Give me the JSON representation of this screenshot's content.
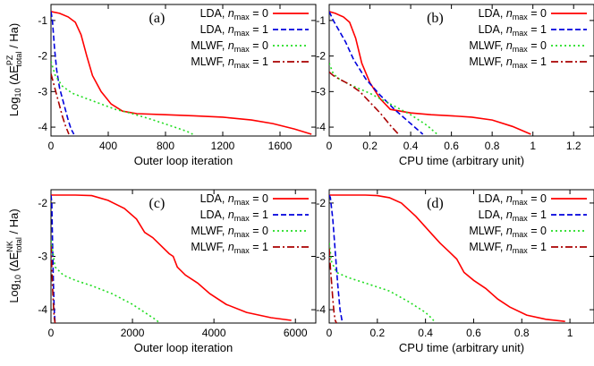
{
  "colors": {
    "lda0": "#ff0000",
    "lda1": "#0000dd",
    "mlwf0": "#22dd22",
    "mlwf1": "#aa0000"
  },
  "legend": [
    {
      "base": "LDA",
      "n": "n",
      "sub": "max",
      "eq": " = 0",
      "color_key": "lda0",
      "dash": "none"
    },
    {
      "base": "LDA",
      "n": "n",
      "sub": "max",
      "eq": " = 1",
      "color_key": "lda1",
      "dash": "6,3"
    },
    {
      "base": "MLWF",
      "n": "n",
      "sub": "max",
      "eq": " = 0",
      "color_key": "mlwf0",
      "dash": "2,3"
    },
    {
      "base": "MLWF",
      "n": "n",
      "sub": "max",
      "eq": " = 1",
      "color_key": "mlwf1",
      "dash": "8,3,2,3"
    }
  ],
  "y_labels": {
    "top": {
      "prefix": "Log",
      "sub10": "10",
      "paren": " (ΔE",
      "sup": "PZ",
      "sub": "total",
      "tail": " / Ha)"
    },
    "bottom": {
      "prefix": "Log",
      "sub10": "10",
      "paren": " (ΔE",
      "sup": "NK",
      "sub": "total",
      "tail": " / Ha)"
    }
  },
  "chart_data": [
    {
      "panel": "(a)",
      "type": "line",
      "xlabel": "Outer loop iteration",
      "xlim": [
        0,
        1850
      ],
      "ylim": [
        -4.25,
        -0.55
      ],
      "xticks": [
        0,
        400,
        800,
        1200,
        1600
      ],
      "yticks": [
        -1,
        -2,
        -3,
        -4
      ],
      "series": [
        {
          "name": "LDA, n_max = 0",
          "color_key": "lda0",
          "x": [
            0,
            60,
            120,
            170,
            210,
            250,
            290,
            350,
            420,
            500,
            600,
            800,
            1000,
            1200,
            1400,
            1550,
            1700,
            1820
          ],
          "y": [
            -0.75,
            -0.8,
            -0.9,
            -1.05,
            -1.4,
            -2.0,
            -2.55,
            -3.0,
            -3.35,
            -3.55,
            -3.62,
            -3.65,
            -3.68,
            -3.72,
            -3.8,
            -3.9,
            -4.05,
            -4.2
          ]
        },
        {
          "name": "LDA, n_max = 1",
          "color_key": "lda1",
          "x": [
            0,
            10,
            25,
            40,
            60,
            80,
            100,
            120,
            140,
            160
          ],
          "y": [
            -0.75,
            -1.0,
            -1.8,
            -2.4,
            -2.9,
            -3.2,
            -3.5,
            -3.8,
            -4.05,
            -4.2
          ]
        },
        {
          "name": "MLWF, n_max = 0",
          "color_key": "mlwf0",
          "x": [
            0,
            30,
            80,
            150,
            250,
            350,
            450,
            500,
            550,
            700,
            850,
            950,
            990
          ],
          "y": [
            -2.15,
            -2.55,
            -2.85,
            -3.05,
            -3.2,
            -3.35,
            -3.5,
            -3.55,
            -3.6,
            -3.78,
            -3.98,
            -4.12,
            -4.2
          ]
        },
        {
          "name": "MLWF, n_max = 1",
          "color_key": "mlwf1",
          "x": [
            0,
            20,
            40,
            60,
            80,
            100,
            115,
            125
          ],
          "y": [
            -2.5,
            -2.8,
            -3.1,
            -3.4,
            -3.7,
            -3.95,
            -4.1,
            -4.2
          ]
        }
      ]
    },
    {
      "panel": "(b)",
      "type": "line",
      "xlabel": "CPU time (arbitrary unit)",
      "xlim": [
        0,
        1.3
      ],
      "ylim": [
        -4.25,
        -0.55
      ],
      "xticks": [
        0,
        0.2,
        0.4,
        0.6,
        0.8,
        1,
        1.2
      ],
      "yticks": [
        -1,
        -2,
        -3,
        -4
      ],
      "series": [
        {
          "name": "LDA, n_max = 0",
          "color_key": "lda0",
          "x": [
            0,
            0.03,
            0.07,
            0.1,
            0.13,
            0.16,
            0.2,
            0.25,
            0.3,
            0.4,
            0.5,
            0.6,
            0.7,
            0.8,
            0.9,
            0.99
          ],
          "y": [
            -0.75,
            -0.8,
            -0.9,
            -1.05,
            -1.5,
            -2.2,
            -2.75,
            -3.2,
            -3.5,
            -3.6,
            -3.65,
            -3.68,
            -3.72,
            -3.8,
            -3.98,
            -4.2
          ]
        },
        {
          "name": "LDA, n_max = 1",
          "color_key": "lda1",
          "x": [
            0,
            0.02,
            0.05,
            0.08,
            0.12,
            0.18,
            0.25,
            0.32,
            0.38,
            0.43,
            0.46
          ],
          "y": [
            -0.75,
            -1.0,
            -1.3,
            -1.6,
            -2.1,
            -2.65,
            -3.1,
            -3.5,
            -3.8,
            -4.05,
            -4.2
          ]
        },
        {
          "name": "MLWF, n_max = 0",
          "color_key": "mlwf0",
          "x": [
            0,
            0.02,
            0.05,
            0.1,
            0.2,
            0.3,
            0.4,
            0.48,
            0.53
          ],
          "y": [
            -2.2,
            -2.5,
            -2.65,
            -2.8,
            -3.05,
            -3.35,
            -3.65,
            -3.95,
            -4.2
          ]
        },
        {
          "name": "MLWF, n_max = 1",
          "color_key": "mlwf1",
          "x": [
            0,
            0.02,
            0.05,
            0.1,
            0.15,
            0.2,
            0.25,
            0.3,
            0.34
          ],
          "y": [
            -2.45,
            -2.55,
            -2.65,
            -2.8,
            -3.0,
            -3.3,
            -3.6,
            -3.95,
            -4.2
          ]
        }
      ]
    },
    {
      "panel": "(c)",
      "type": "line",
      "xlabel": "Outer loop iteration",
      "xlim": [
        0,
        6500
      ],
      "ylim": [
        -4.25,
        -1.75
      ],
      "xticks": [
        0,
        2000,
        4000,
        6000
      ],
      "yticks": [
        -2,
        -3,
        -4
      ],
      "series": [
        {
          "name": "LDA, n_max = 0",
          "color_key": "lda0",
          "x": [
            0,
            200,
            600,
            1000,
            1400,
            1800,
            2100,
            2300,
            2500,
            2700,
            2900,
            3000,
            3100,
            3300,
            3600,
            3900,
            4300,
            4800,
            5400,
            5900
          ],
          "y": [
            -1.85,
            -1.85,
            -1.85,
            -1.86,
            -1.95,
            -2.1,
            -2.3,
            -2.55,
            -2.65,
            -2.8,
            -2.95,
            -3.0,
            -3.2,
            -3.35,
            -3.5,
            -3.7,
            -3.9,
            -4.05,
            -4.15,
            -4.2
          ]
        },
        {
          "name": "LDA, n_max = 1",
          "color_key": "lda1",
          "x": [
            0,
            20,
            40,
            60,
            80,
            100
          ],
          "y": [
            -1.85,
            -2.0,
            -2.8,
            -3.5,
            -4.0,
            -4.25
          ]
        },
        {
          "name": "MLWF, n_max = 0",
          "color_key": "mlwf0",
          "x": [
            0,
            100,
            300,
            600,
            1000,
            1500,
            2000,
            2400,
            2600,
            2650
          ],
          "y": [
            -2.7,
            -3.2,
            -3.35,
            -3.45,
            -3.55,
            -3.7,
            -3.9,
            -4.1,
            -4.2,
            -4.25
          ]
        },
        {
          "name": "MLWF, n_max = 1",
          "color_key": "mlwf1",
          "x": [
            0,
            20,
            40,
            60,
            80,
            100
          ],
          "y": [
            -2.8,
            -3.2,
            -3.6,
            -3.9,
            -4.15,
            -4.25
          ]
        }
      ]
    },
    {
      "panel": "(d)",
      "type": "line",
      "xlabel": "CPU time (arbitrary unit)",
      "xlim": [
        0,
        1.1
      ],
      "ylim": [
        -4.25,
        -1.75
      ],
      "xticks": [
        0,
        0.2,
        0.4,
        0.6,
        0.8,
        1
      ],
      "yticks": [
        -2,
        -3,
        -4
      ],
      "series": [
        {
          "name": "LDA, n_max = 0",
          "color_key": "lda0",
          "x": [
            0,
            0.05,
            0.15,
            0.2,
            0.25,
            0.3,
            0.36,
            0.4,
            0.43,
            0.46,
            0.5,
            0.53,
            0.56,
            0.6,
            0.65,
            0.7,
            0.75,
            0.82,
            0.9,
            0.98
          ],
          "y": [
            -1.85,
            -1.85,
            -1.85,
            -1.86,
            -1.9,
            -2.0,
            -2.25,
            -2.45,
            -2.6,
            -2.75,
            -2.92,
            -3.05,
            -3.3,
            -3.45,
            -3.6,
            -3.8,
            -3.95,
            -4.1,
            -4.18,
            -4.22
          ]
        },
        {
          "name": "LDA, n_max = 1",
          "color_key": "lda1",
          "x": [
            0,
            0.005,
            0.015,
            0.025,
            0.035,
            0.045,
            0.055
          ],
          "y": [
            -1.85,
            -1.9,
            -2.3,
            -2.9,
            -3.5,
            -4.0,
            -4.25
          ]
        },
        {
          "name": "MLWF, n_max = 0",
          "color_key": "mlwf0",
          "x": [
            0,
            0.01,
            0.03,
            0.08,
            0.15,
            0.25,
            0.33,
            0.4,
            0.43,
            0.44
          ],
          "y": [
            -2.75,
            -3.1,
            -3.3,
            -3.4,
            -3.5,
            -3.65,
            -3.85,
            -4.05,
            -4.18,
            -4.25
          ]
        },
        {
          "name": "MLWF, n_max = 1",
          "color_key": "mlwf1",
          "x": [
            0,
            0.005,
            0.01,
            0.015,
            0.02,
            0.025,
            0.03
          ],
          "y": [
            -2.85,
            -3.2,
            -3.5,
            -3.8,
            -4.05,
            -4.2,
            -4.25
          ]
        }
      ]
    }
  ]
}
